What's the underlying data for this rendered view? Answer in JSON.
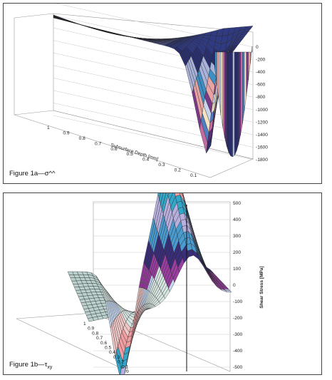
{
  "figures": {
    "a": {
      "caption_prefix": "Figure 1a—",
      "caption_symbol": "σ^^"
    },
    "b": {
      "caption_prefix": "Figure 1b—",
      "caption_symbol": "τ",
      "caption_sub": "xy"
    }
  },
  "colors": {
    "band_a": [
      "#2a2f6e",
      "#a9b2d8",
      "#3d8fc4",
      "#e8a3a3",
      "#7a3a8a",
      "#c9d4ee",
      "#f3e3c0",
      "#4f7fc2",
      "#c36aa0",
      "#5a2f78"
    ],
    "band_b": [
      "#f09ea1",
      "#35a6c8",
      "#b7b0de",
      "#4a9bcf",
      "#3a2d7a",
      "#9a3fa0",
      "#c6d6ef",
      "#f0c8c8"
    ],
    "mesh": "#222222",
    "frame": "#999999"
  },
  "chart_data": [
    {
      "type": "surface3d",
      "title": "",
      "xlabel": "Subsurface Depth [mm]",
      "ylabel": "",
      "zlabel": "",
      "x_ticks": [
        "1",
        "0.9",
        "0.8",
        "0.7",
        "0.6",
        "0.5",
        "0.4",
        "0.3",
        "0.2",
        "0.1"
      ],
      "z_ticks": [
        "0",
        "-200",
        "-400",
        "-600",
        "-800",
        "-1000",
        "-1200",
        "-1400",
        "-1600",
        "-1800"
      ],
      "zlim": [
        -1800,
        0
      ]
    },
    {
      "type": "surface3d",
      "title": "",
      "xlabel": "",
      "ylabel": "",
      "zlabel": "Shear Stress [MPa]",
      "x_ticks": [
        "1",
        "0.9",
        "0.8",
        "0.7",
        "0.6",
        "0.5",
        "0.4",
        "0.3",
        "0.2",
        "0.1",
        "0"
      ],
      "z_ticks": [
        "500",
        "400",
        "300",
        "200",
        "100",
        "0",
        "-100",
        "-200",
        "-300",
        "-400",
        "-500"
      ],
      "zlim": [
        -500,
        500
      ]
    }
  ]
}
